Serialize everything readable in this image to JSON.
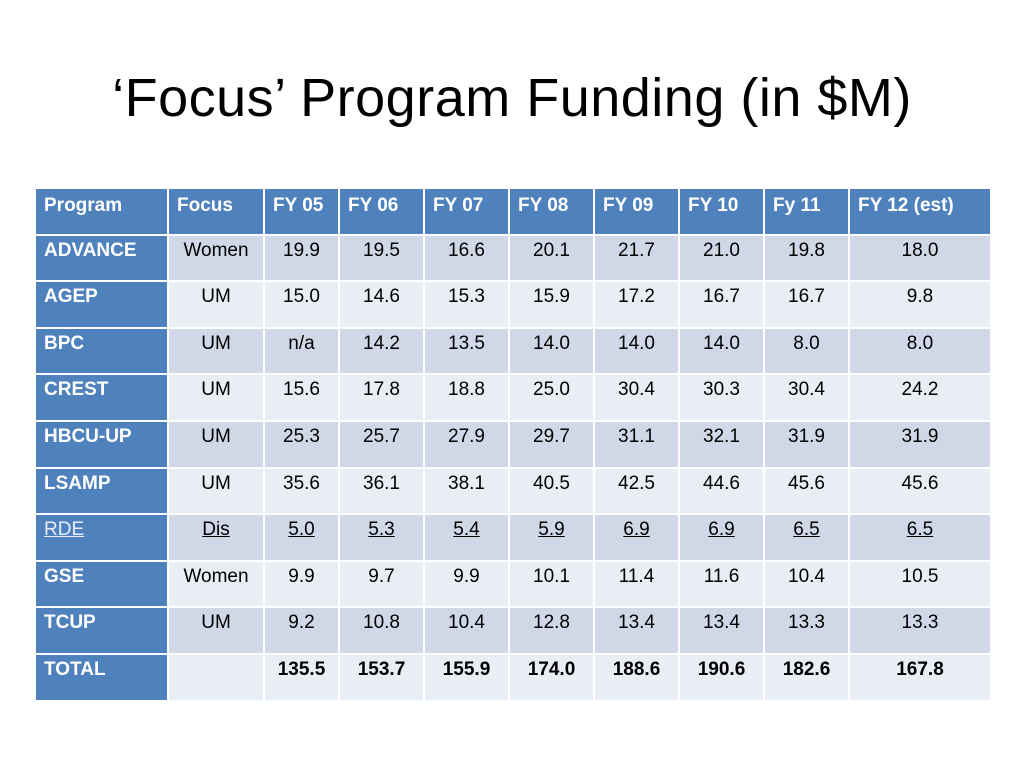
{
  "title": "‘Focus’ Program Funding (in $M)",
  "table": {
    "headers": [
      "Program",
      "Focus",
      "FY 05",
      "FY 06",
      "FY 07",
      "FY 08",
      "FY 09",
      "FY 10",
      "Fy 11",
      "FY 12 (est)"
    ],
    "rows": [
      {
        "program": "ADVANCE",
        "focus": "Women",
        "values": [
          "19.9",
          "19.5",
          "16.6",
          "20.1",
          "21.7",
          "21.0",
          "19.8",
          "18.0"
        ]
      },
      {
        "program": "AGEP",
        "focus": "UM",
        "values": [
          "15.0",
          "14.6",
          "15.3",
          "15.9",
          "17.2",
          "16.7",
          "16.7",
          "9.8"
        ]
      },
      {
        "program": "BPC",
        "focus": "UM",
        "values": [
          "n/a",
          "14.2",
          "13.5",
          "14.0",
          "14.0",
          "14.0",
          "8.0",
          "8.0"
        ]
      },
      {
        "program": "CREST",
        "focus": "UM",
        "values": [
          "15.6",
          "17.8",
          "18.8",
          "25.0",
          "30.4",
          "30.3",
          "30.4",
          "24.2"
        ]
      },
      {
        "program": "HBCU-UP",
        "focus": "UM",
        "values": [
          "25.3",
          "25.7",
          "27.9",
          "29.7",
          "31.1",
          "32.1",
          "31.9",
          "31.9"
        ]
      },
      {
        "program": "LSAMP",
        "focus": "UM",
        "values": [
          "35.6",
          "36.1",
          "38.1",
          "40.5",
          "42.5",
          "44.6",
          "45.6",
          "45.6"
        ]
      },
      {
        "program": "RDE",
        "focus": "Dis",
        "values": [
          "5.0",
          "5.3",
          "5.4",
          "5.9",
          "6.9",
          "6.9",
          "6.5",
          "6.5"
        ]
      },
      {
        "program": "GSE",
        "focus": "Women",
        "values": [
          "9.9",
          "9.7",
          "9.9",
          "10.1",
          "11.4",
          "11.6",
          "10.4",
          "10.5"
        ]
      },
      {
        "program": "TCUP",
        "focus": "UM",
        "values": [
          "9.2",
          "10.8",
          "10.4",
          "12.8",
          "13.4",
          "13.4",
          "13.3",
          "13.3"
        ]
      },
      {
        "program": "TOTAL",
        "focus": "",
        "values": [
          "135.5",
          "153.7",
          "155.9",
          "174.0",
          "188.6",
          "190.6",
          "182.6",
          "167.8"
        ]
      }
    ]
  },
  "colors": {
    "header_bg": "#4f81bd",
    "row_odd_bg": "#d0d8e8",
    "row_even_bg": "#e9edf4"
  }
}
